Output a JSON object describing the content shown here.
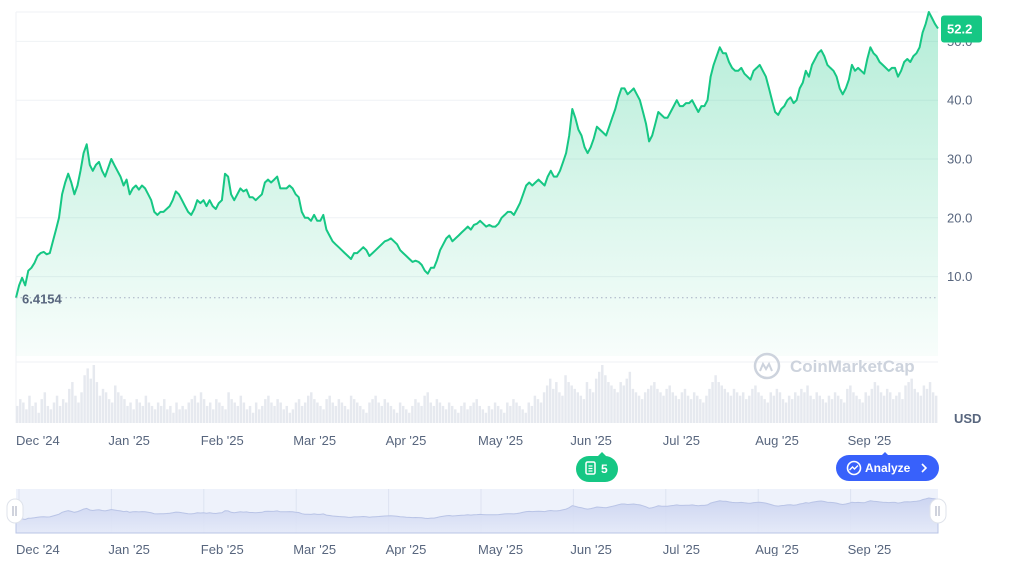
{
  "chart_data": {
    "type": "area",
    "currency_label": "USD",
    "line_color": "#16c784",
    "watermark": "CoinMarketCap",
    "current_price_label": "52.2",
    "start_price_label": "6.4154",
    "start_price": 6.4154,
    "ylim": [
      -3.5,
      55
    ],
    "y_ticks": [
      {
        "label": "10.0",
        "value": 10
      },
      {
        "label": "20.0",
        "value": 20
      },
      {
        "label": "30.0",
        "value": 30
      },
      {
        "label": "40.0",
        "value": 40
      },
      {
        "label": "50.0",
        "value": 50
      }
    ],
    "x_ticks": [
      "Dec '24",
      "Jan '25",
      "Feb '25",
      "Mar '25",
      "Apr '25",
      "May '25",
      "Jun '25",
      "Jul '25",
      "Aug '25",
      "Sep '25"
    ],
    "news_badge_count": "5",
    "analyze_label": "Analyze",
    "series": [
      {
        "values": [
          6.4,
          8.5,
          9.8,
          8.5,
          11,
          11.5,
          12.3,
          13.5,
          14,
          14.2,
          13.8,
          14,
          16,
          18,
          20,
          24,
          26,
          27.5,
          26,
          24,
          25.5,
          28,
          31,
          32.5,
          29,
          28,
          29,
          29.5,
          28,
          27,
          28.5,
          30,
          29,
          28,
          27,
          25.5,
          26.5,
          24,
          25,
          25.5,
          24.8,
          25.5,
          25,
          24,
          23,
          21,
          20.5,
          21,
          21,
          21.5,
          22,
          23,
          24.5,
          24,
          23,
          22,
          21,
          20.5,
          21.5,
          23,
          22.5,
          23,
          22,
          23,
          22,
          21.5,
          22.5,
          23,
          27.5,
          27,
          24,
          23,
          24,
          25,
          24.5,
          24.8,
          23.5,
          23.5,
          23,
          23.5,
          24,
          26,
          26.5,
          26,
          26.5,
          27,
          25,
          25,
          25,
          25.5,
          25,
          24,
          23.5,
          21,
          20,
          20,
          19.5,
          20.5,
          19.5,
          19.5,
          20.5,
          18,
          17,
          16,
          15.5,
          15,
          14.5,
          14,
          13.5,
          13,
          14,
          14,
          14.5,
          15,
          14.5,
          13.5,
          14,
          14.5,
          15,
          15.5,
          16,
          16.2,
          16.5,
          16,
          15.5,
          14.5,
          14,
          13.5,
          13,
          12.5,
          12.7,
          12.5,
          12,
          11,
          10.5,
          11.5,
          11.5,
          12.8,
          14.5,
          15.5,
          16.5,
          17,
          16,
          16.5,
          17,
          17.5,
          18,
          18.5,
          18,
          18.8,
          19,
          19.5,
          19,
          18.5,
          18.8,
          18.5,
          18.5,
          19,
          20,
          20.5,
          21,
          21,
          20.5,
          21.5,
          22.5,
          24,
          25.5,
          26,
          25.5,
          26,
          26.5,
          26,
          25.5,
          27,
          28,
          27,
          27,
          28,
          29.5,
          31,
          34,
          38.5,
          37,
          35,
          34,
          32,
          31,
          32,
          33.5,
          35.5,
          35,
          34.5,
          34,
          35.5,
          37,
          38.5,
          40.5,
          42,
          42,
          41,
          41.5,
          42,
          41,
          40,
          38,
          36,
          33,
          34,
          36,
          38,
          37.5,
          37,
          37,
          38,
          39,
          40,
          39,
          39,
          39.5,
          39.5,
          40,
          39,
          38,
          39,
          39,
          40,
          44,
          46,
          47.5,
          49,
          48,
          48,
          46.5,
          45.5,
          45,
          45,
          45.5,
          44.5,
          44,
          43.5,
          45,
          45.5,
          46,
          45,
          44,
          42,
          40,
          38,
          37.5,
          38.5,
          39,
          40,
          40.5,
          39.5,
          40,
          42,
          43,
          45,
          44,
          46,
          47,
          48,
          48.5,
          47.5,
          46,
          45.5,
          45,
          44,
          42,
          41,
          42,
          43.5,
          46,
          45,
          45.5,
          45,
          44.5,
          47,
          49,
          48,
          47.5,
          46.5,
          46,
          45.5,
          45,
          45.5,
          45.5,
          44,
          45,
          46.5,
          47,
          46.5,
          47.5,
          48,
          49,
          51.5,
          53,
          55,
          54,
          53,
          52.2
        ]
      }
    ],
    "volume": [
      5,
      7,
      6,
      4,
      8,
      5,
      6,
      3,
      7,
      9,
      5,
      4,
      6,
      8,
      5,
      7,
      6,
      10,
      12,
      8,
      6,
      9,
      14,
      16,
      13,
      17,
      12,
      8,
      10,
      9,
      7,
      6,
      11,
      9,
      8,
      7,
      5,
      6,
      4,
      7,
      6,
      5,
      8,
      6,
      5,
      4,
      6,
      5,
      7,
      4,
      5,
      3,
      6,
      4,
      5,
      4,
      6,
      7,
      8,
      6,
      9,
      7,
      5,
      6,
      4,
      7,
      6,
      5,
      4,
      9,
      7,
      6,
      5,
      8,
      6,
      4,
      5,
      3,
      6,
      4,
      5,
      7,
      8,
      6,
      5,
      7,
      6,
      4,
      5,
      3,
      4,
      6,
      7,
      5,
      6,
      8,
      9,
      7,
      6,
      5,
      4,
      7,
      8,
      6,
      5,
      7,
      6,
      5,
      4,
      8,
      7,
      6,
      5,
      4,
      3,
      6,
      7,
      8,
      6,
      5,
      7,
      6,
      5,
      4,
      3,
      6,
      5,
      4,
      3,
      5,
      7,
      6,
      5,
      8,
      9,
      6,
      5,
      7,
      6,
      5,
      4,
      6,
      5,
      4,
      3,
      5,
      6,
      4,
      5,
      6,
      7,
      5,
      4,
      3,
      5,
      4,
      6,
      5,
      4,
      3,
      6,
      5,
      7,
      6,
      5,
      4,
      3,
      6,
      5,
      8,
      7,
      6,
      9,
      11,
      13,
      10,
      12,
      9,
      8,
      14,
      12,
      11,
      10,
      9,
      8,
      7,
      12,
      10,
      9,
      13,
      15,
      17,
      14,
      12,
      11,
      10,
      9,
      12,
      11,
      13,
      15,
      10,
      9,
      8,
      7,
      9,
      10,
      11,
      12,
      10,
      9,
      8,
      10,
      11,
      9,
      8,
      7,
      9,
      10,
      8,
      7,
      9,
      8,
      7,
      6,
      8,
      10,
      12,
      14,
      12,
      11,
      10,
      9,
      8,
      10,
      9,
      8,
      9,
      7,
      8,
      10,
      11,
      9,
      8,
      7,
      6,
      9,
      8,
      10,
      9,
      7,
      6,
      8,
      7,
      9,
      8,
      10,
      9,
      11,
      8,
      7,
      9,
      8,
      7,
      6,
      8,
      7,
      9,
      8,
      7,
      6,
      10,
      11,
      9,
      8,
      7,
      6,
      9,
      8,
      10,
      12,
      11,
      9,
      8,
      10,
      9,
      7,
      8,
      9,
      7,
      11,
      12,
      13,
      10,
      9,
      8,
      11,
      10,
      12,
      9,
      8
    ]
  }
}
